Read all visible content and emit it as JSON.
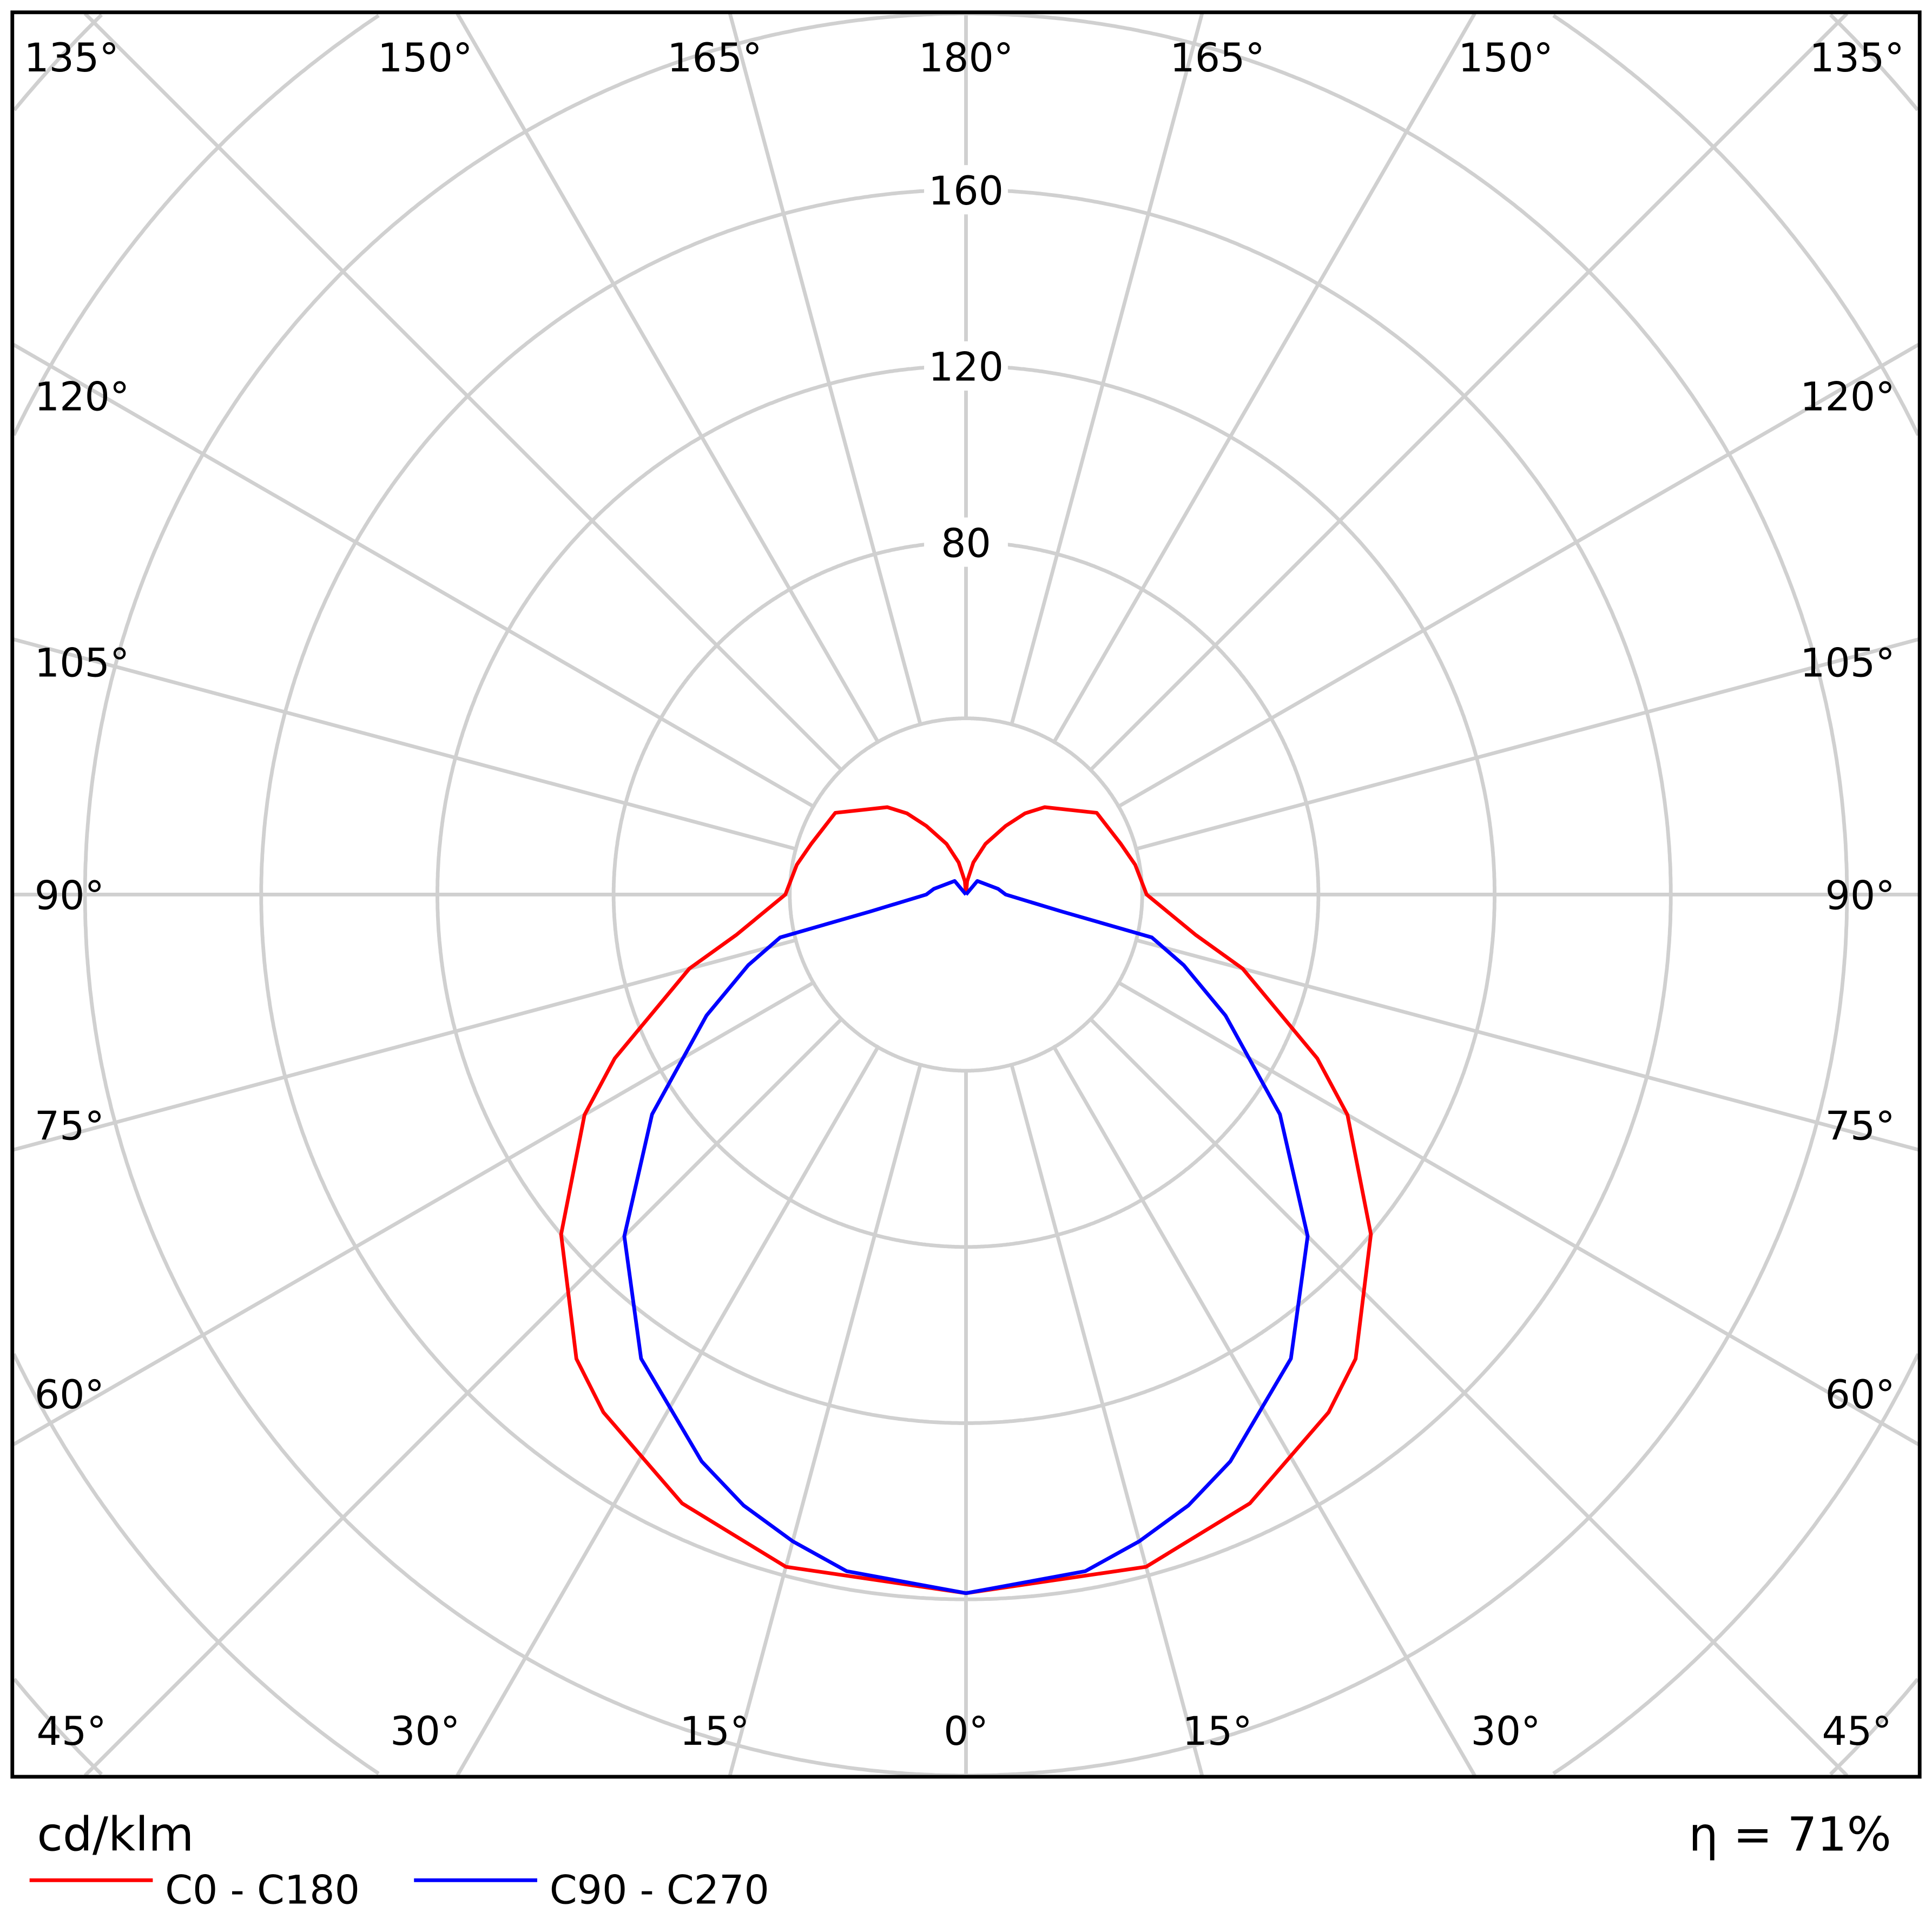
{
  "chart_data": {
    "type": "polar",
    "unit_label": "cd/klm",
    "efficiency_label": "η = 71%",
    "radial_ticks": [
      80,
      120,
      160
    ],
    "radial_grid": [
      40,
      80,
      120,
      160,
      200,
      240,
      280
    ],
    "angle_labels": {
      "top": [
        "135°",
        "150°",
        "165°",
        "180°",
        "165°",
        "150°",
        "135°"
      ],
      "left": [
        "120°",
        "105°",
        "90°",
        "75°",
        "60°"
      ],
      "right": [
        "120°",
        "105°",
        "90°",
        "75°",
        "60°"
      ],
      "bottom": [
        "45°",
        "30°",
        "15°",
        "0°",
        "15°",
        "30°",
        "45°"
      ]
    },
    "grid": true,
    "legend_placement": "bottom-left",
    "series": [
      {
        "name": "C0 - C180",
        "color": "#ff0000",
        "angles": [
          0,
          15,
          25,
          35,
          40,
          50,
          60,
          65,
          75,
          80,
          90,
          100,
          108,
          122,
          130,
          138,
          144,
          150,
          159,
          167,
          175,
          180
        ],
        "values": [
          158.6,
          158,
          152.5,
          143.5,
          137.6,
          120,
          100,
          88,
          65,
          53,
          41,
          39,
          37,
          35,
          30,
          26.7,
          22.8,
          18,
          12.3,
          7.5,
          3,
          0
        ]
      },
      {
        "name": "C90 - C270",
        "color": "#0000ff",
        "angles": [
          0,
          10,
          15,
          20,
          25,
          35,
          45,
          55,
          65,
          72,
          77,
          80,
          90,
          100,
          140,
          180
        ],
        "values": [
          158.6,
          156,
          152,
          147.6,
          142,
          128.6,
          109.7,
          87,
          65,
          52,
          43.3,
          22,
          9,
          7.4,
          4,
          0
        ]
      }
    ]
  }
}
